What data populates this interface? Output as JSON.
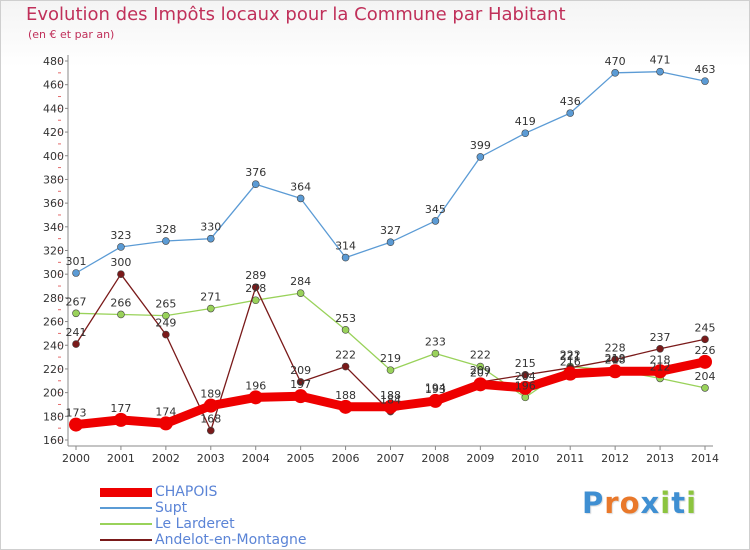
{
  "title": "Evolution des Impôts locaux pour la Commune par Habitant",
  "subtitle": "(en € et par an)",
  "logo": {
    "text": "Proxiti",
    "letters": [
      "P",
      "r",
      "o",
      "x",
      "i",
      "t",
      "i"
    ],
    "colors": [
      "#3f8fd2",
      "#e9782a",
      "#e9782a",
      "#3f8fd2",
      "#8cc43f",
      "#3f8fd2",
      "#8cc43f"
    ]
  },
  "chart_data": {
    "type": "line",
    "x": [
      2000,
      2001,
      2002,
      2003,
      2004,
      2005,
      2006,
      2007,
      2008,
      2009,
      2010,
      2011,
      2012,
      2013,
      2014
    ],
    "ylim": [
      160,
      480
    ],
    "yticks": [
      160,
      180,
      200,
      220,
      240,
      260,
      280,
      300,
      320,
      340,
      360,
      380,
      400,
      420,
      440,
      460,
      480
    ],
    "grid": false,
    "legend_position": "bottom-left",
    "series": [
      {
        "name": "CHAPOIS",
        "color": "#ee0000",
        "values": [
          173,
          177,
          174,
          189,
          196,
          197,
          188,
          188,
          193,
          207,
          204,
          216,
          218,
          218,
          226
        ],
        "labels": [
          "173",
          "177",
          "174",
          "189",
          "196",
          "197",
          "188",
          "188",
          "193",
          "207",
          "204",
          "216",
          "218",
          "218",
          "226"
        ]
      },
      {
        "name": "Supt",
        "color": "#5b9bd5",
        "values": [
          301,
          323,
          328,
          330,
          376,
          364,
          314,
          327,
          345,
          399,
          419,
          436,
          470,
          471,
          463
        ],
        "labels": [
          "301",
          "323",
          "328",
          "330",
          "376",
          "364",
          "314",
          "327",
          "345",
          "399",
          "419",
          "436",
          "470",
          "471",
          "463"
        ]
      },
      {
        "name": "Le Larderet",
        "color": "#99d25a",
        "values": [
          267,
          266,
          265,
          271,
          278,
          284,
          253,
          219,
          233,
          222,
          196,
          222,
          219,
          212,
          204
        ],
        "labels": [
          "267",
          "266",
          "265",
          "271",
          "278",
          "284",
          "253",
          "219",
          "233",
          "222",
          "196",
          "222",
          "219",
          "212",
          "204"
        ]
      },
      {
        "name": "Andelot-en-Montagne",
        "color": "#7a1a1a",
        "values": [
          241,
          300,
          249,
          168,
          289,
          209,
          222,
          184,
          194,
          209,
          215,
          221,
          228,
          237,
          245
        ],
        "labels": [
          "241",
          "300",
          "249",
          "168",
          "289",
          "209",
          "222",
          "184",
          "194",
          "209",
          "215",
          "221",
          "228",
          "237",
          "245"
        ]
      }
    ]
  }
}
